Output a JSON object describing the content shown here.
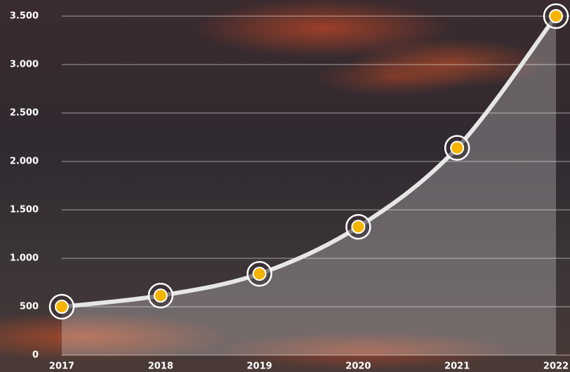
{
  "chart_data": {
    "type": "line",
    "categories": [
      "2017",
      "2018",
      "2019",
      "2020",
      "2021",
      "2022"
    ],
    "values": [
      500,
      615,
      840,
      1325,
      2140,
      3500
    ],
    "color": "#e6e6e6",
    "marker_color": "#f5b400",
    "ylim": [
      0,
      3500
    ],
    "yticks": [
      0,
      500,
      {
        "value": 1000,
        "label": "1.000"
      },
      {
        "value": 1500,
        "label": "1.500"
      },
      {
        "value": 2000,
        "label": "2.000"
      },
      {
        "value": 2500,
        "label": "2.500"
      },
      {
        "value": 3000,
        "label": "3.000"
      },
      {
        "value": 3500,
        "label": "3.500"
      }
    ],
    "grid": true
  }
}
